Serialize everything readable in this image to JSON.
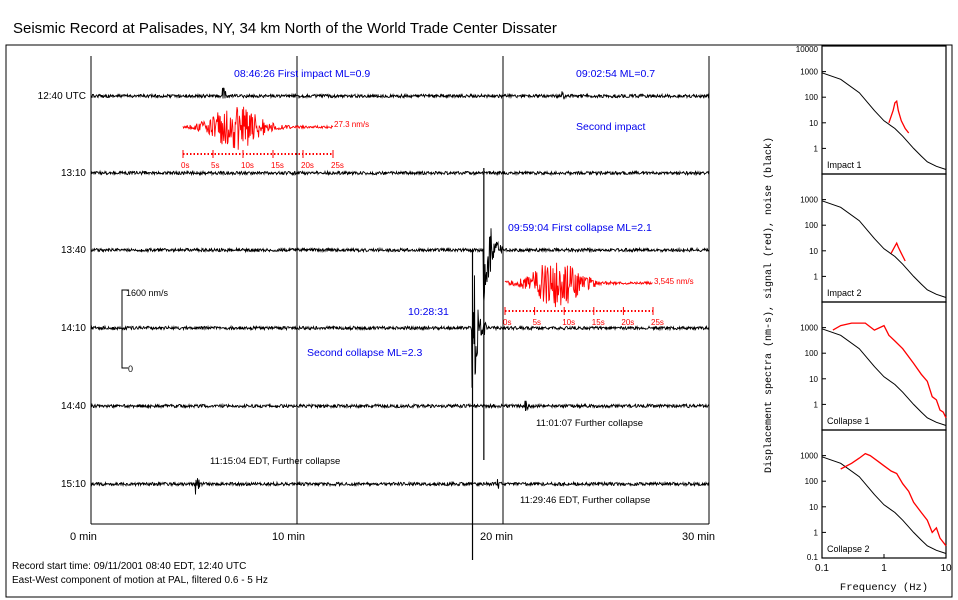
{
  "title": "Seismic Record at Palisades, NY, 34 km North of the World Trade Center Dissater",
  "record_info": {
    "line1": "Record start time: 09/11/2001 08:40 EDT, 12:40 UTC",
    "line2": "East-West component of motion at PAL, filtered 0.6 - 5 Hz"
  },
  "colors": {
    "trace": "#000000",
    "signal": "#ff0000",
    "event_text": "#0000ee"
  },
  "chart_data": [
    {
      "type": "line",
      "x_unit": "min",
      "xlim": [
        0,
        30
      ],
      "x_ticks": [
        0,
        10,
        20,
        30
      ],
      "x_tick_labels": [
        "0 min",
        "10 min",
        "20 min",
        "30 min"
      ],
      "row_labels": [
        "12:40 UTC",
        "13:10",
        "13:40",
        "14:10",
        "14:40",
        "15:10"
      ],
      "scale_bar": {
        "top_label": "1600 nm/s",
        "bottom_label": "0"
      },
      "events": [
        {
          "label": "08:46:26 First impact ML=0.9",
          "row": 0,
          "minute": 6.43,
          "amplitude_nm_s": "27.3 nm/s"
        },
        {
          "label": "09:02:54 ML=0.7",
          "row": 0,
          "minute": 22.9,
          "amplitude_nm_s": ""
        },
        {
          "label": "Second impact",
          "row": 0,
          "minute": 22.9,
          "amplitude_nm_s": ""
        },
        {
          "label": "09:59:04 First collapse ML=2.1",
          "row": 2,
          "minute": 19.07,
          "amplitude_nm_s": "3,545 nm/s"
        },
        {
          "label": "10:28:31",
          "row": 3,
          "minute": 18.52,
          "amplitude_nm_s": ""
        },
        {
          "label": "Second collapse ML=2.3",
          "row": 3,
          "minute": 18.52,
          "amplitude_nm_s": ""
        },
        {
          "label": "11:01:07 Further collapse",
          "row": 4,
          "minute": 21.1,
          "amplitude_nm_s": ""
        },
        {
          "label": "11:15:04 EDT, Further collapse",
          "row": 5,
          "minute": 5.07,
          "amplitude_nm_s": ""
        },
        {
          "label": "11:29:46 EDT, Further collapse",
          "row": 5,
          "minute": 19.77,
          "amplitude_nm_s": ""
        }
      ],
      "inset_labels": {
        "impact": {
          "amplitude": "27.3 nm/s",
          "ticks": [
            "0s",
            "5s",
            "10s",
            "15s",
            "20s",
            "25s"
          ]
        },
        "collapse": {
          "amplitude": "3,545 nm/s",
          "ticks": [
            "0s",
            "5s",
            "10s",
            "15s",
            "20s",
            "25s"
          ]
        }
      }
    },
    {
      "type": "line",
      "xlabel": "Frequency (Hz)",
      "ylabel": "Displacement spectra (nm-s), signal (red), noise (black)",
      "x_scale": "log",
      "y_scale": "log",
      "xlim": [
        0.1,
        10
      ],
      "x_ticks": [
        0.1,
        1,
        10
      ],
      "x_tick_labels": [
        "0.1",
        "1",
        "10"
      ],
      "y_ticks": [
        0.1,
        1,
        10,
        100,
        1000,
        10000
      ],
      "y_tick_labels": [
        "0.1",
        "1",
        "10",
        "100",
        "1000",
        "10000"
      ],
      "panels": [
        {
          "name": "Impact 1",
          "ylim": [
            0.1,
            10000
          ],
          "noise": [
            [
              0.1,
              900
            ],
            [
              0.2,
              500
            ],
            [
              0.4,
              150
            ],
            [
              0.7,
              30
            ],
            [
              1,
              12
            ],
            [
              1.5,
              6
            ],
            [
              2,
              3
            ],
            [
              3,
              1
            ],
            [
              4,
              0.5
            ],
            [
              5,
              0.3
            ],
            [
              7,
              0.2
            ],
            [
              10,
              0.15
            ]
          ],
          "signal": [
            [
              1.2,
              10
            ],
            [
              1.4,
              30
            ],
            [
              1.5,
              60
            ],
            [
              1.6,
              70
            ],
            [
              1.7,
              30
            ],
            [
              1.9,
              12
            ],
            [
              2.2,
              6
            ],
            [
              2.5,
              4
            ]
          ]
        },
        {
          "name": "Impact 2",
          "ylim": [
            0.1,
            10000
          ],
          "noise": [
            [
              0.1,
              900
            ],
            [
              0.2,
              500
            ],
            [
              0.4,
              150
            ],
            [
              0.7,
              30
            ],
            [
              1,
              12
            ],
            [
              1.5,
              6
            ],
            [
              2,
              3
            ],
            [
              3,
              1
            ],
            [
              4,
              0.5
            ],
            [
              5,
              0.3
            ],
            [
              7,
              0.2
            ],
            [
              10,
              0.15
            ]
          ],
          "signal": [
            [
              1.3,
              8
            ],
            [
              1.5,
              15
            ],
            [
              1.6,
              20
            ],
            [
              1.7,
              14
            ],
            [
              1.9,
              8
            ],
            [
              2.2,
              4
            ]
          ]
        },
        {
          "name": "Collapse 1",
          "ylim": [
            0.1,
            10000
          ],
          "noise": [
            [
              0.1,
              900
            ],
            [
              0.2,
              500
            ],
            [
              0.4,
              150
            ],
            [
              0.7,
              30
            ],
            [
              1,
              12
            ],
            [
              1.5,
              6
            ],
            [
              2,
              3
            ],
            [
              3,
              1
            ],
            [
              4,
              0.5
            ],
            [
              5,
              0.3
            ],
            [
              7,
              0.2
            ],
            [
              10,
              0.15
            ]
          ],
          "signal": [
            [
              0.15,
              800
            ],
            [
              0.2,
              1200
            ],
            [
              0.3,
              1500
            ],
            [
              0.5,
              1500
            ],
            [
              0.7,
              800
            ],
            [
              1,
              1200
            ],
            [
              1.2,
              500
            ],
            [
              1.5,
              300
            ],
            [
              2,
              150
            ],
            [
              3,
              40
            ],
            [
              4,
              15
            ],
            [
              5,
              8
            ],
            [
              6,
              2
            ],
            [
              7,
              1.5
            ],
            [
              8,
              0.6
            ],
            [
              9,
              0.5
            ],
            [
              10,
              0.3
            ]
          ]
        },
        {
          "name": "Collapse 2",
          "ylim": [
            0.1,
            10000
          ],
          "noise": [
            [
              0.1,
              900
            ],
            [
              0.2,
              500
            ],
            [
              0.4,
              150
            ],
            [
              0.7,
              30
            ],
            [
              1,
              12
            ],
            [
              1.5,
              6
            ],
            [
              2,
              3
            ],
            [
              3,
              1
            ],
            [
              4,
              0.5
            ],
            [
              5,
              0.3
            ],
            [
              7,
              0.2
            ],
            [
              10,
              0.15
            ]
          ],
          "signal": [
            [
              0.2,
              300
            ],
            [
              0.3,
              500
            ],
            [
              0.4,
              800
            ],
            [
              0.5,
              1200
            ],
            [
              0.6,
              1000
            ],
            [
              0.8,
              600
            ],
            [
              1,
              400
            ],
            [
              1.3,
              250
            ],
            [
              1.6,
              200
            ],
            [
              2,
              80
            ],
            [
              2.5,
              40
            ],
            [
              3,
              15
            ],
            [
              4,
              6
            ],
            [
              5,
              3
            ],
            [
              6,
              1
            ],
            [
              7,
              1.5
            ],
            [
              8,
              0.6
            ],
            [
              10,
              0.3
            ]
          ]
        }
      ]
    }
  ]
}
